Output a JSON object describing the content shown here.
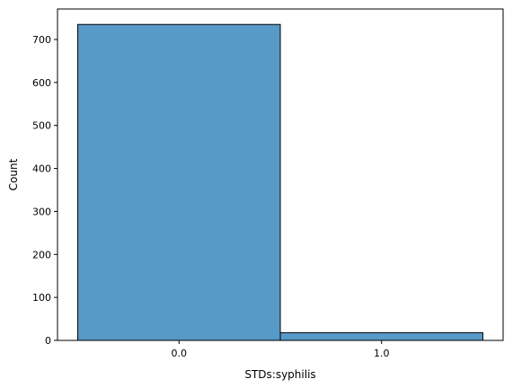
{
  "chart_data": {
    "type": "bar",
    "title": "",
    "xlabel": "STDs:syphilis",
    "ylabel": "Count",
    "categories": [
      "0.0",
      "1.0"
    ],
    "values": [
      735,
      18
    ],
    "ylim": [
      0,
      771
    ],
    "yticks": [
      0,
      100,
      200,
      300,
      400,
      500,
      600,
      700
    ],
    "grid": false,
    "legend": "none",
    "bar_color": "#5799c7",
    "edge_color": "#000000"
  }
}
